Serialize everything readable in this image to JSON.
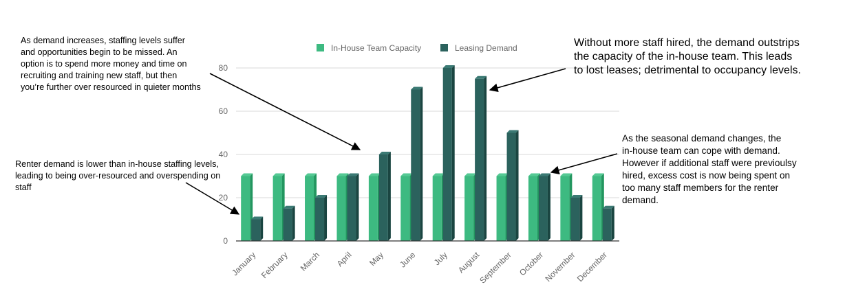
{
  "chart_data": {
    "type": "bar",
    "categories": [
      "January",
      "February",
      "March",
      "April",
      "May",
      "June",
      "July",
      "August",
      "September",
      "October",
      "November",
      "December"
    ],
    "series": [
      {
        "name": "In-House Team Capacity",
        "values": [
          30,
          30,
          30,
          30,
          30,
          30,
          30,
          30,
          30,
          30,
          30,
          30
        ]
      },
      {
        "name": "Leasing Demand",
        "values": [
          10,
          15,
          20,
          30,
          40,
          70,
          80,
          75,
          50,
          30,
          20,
          15
        ]
      }
    ],
    "ylim": [
      0,
      80
    ],
    "yticks": [
      0,
      20,
      40,
      60,
      80
    ],
    "grid": true,
    "legend_position": "top",
    "colors": {
      "capacity_front": "#3dba81",
      "capacity_side": "#22965f",
      "capacity_top": "#55c994",
      "demand_front": "#2b625d",
      "demand_side": "#1a4541",
      "demand_top": "#3b7a74",
      "grid": "#d9d9d9",
      "axis": "#333333",
      "arrow": "#000000"
    }
  },
  "annotations": {
    "rising_demand": "As demand increases, staffing levels suffer\nand opportunities begin to be missed.  An\noption is to spend more money and time on\nrecruiting and training new staff, but then\nyou’re further over resourced in quieter months",
    "low_demand": "Renter demand is lower than in-house staffing levels,\nleading to being over-resourced and overspending on\nstaff",
    "peak_demand": "Without more staff hired, the demand outstrips\nthe capacity of the in-house team.  This leads\nto lost leases; detrimental to occupancy levels.",
    "seasonal_change": "As the seasonal demand changes, the\nin-house team can cope with demand.\nHowever if additional staff were previoulsy\nhired, excess cost is now being spent on\ntoo many staff members for the renter\ndemand."
  }
}
